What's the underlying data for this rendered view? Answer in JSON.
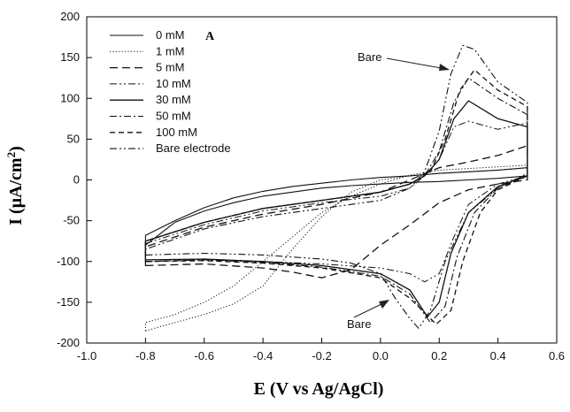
{
  "chart_data": {
    "type": "line",
    "panel_label": "A",
    "xlabel": "E (V vs Ag/AgCl)",
    "ylabel_main": "I (μA/cm",
    "ylabel_sup": "2",
    "ylabel_close": ")",
    "xlim": [
      -1.0,
      0.6
    ],
    "ylim": [
      -200,
      200
    ],
    "xticks": [
      -1.0,
      -0.8,
      -0.6,
      -0.4,
      -0.2,
      0.0,
      0.2,
      0.4,
      0.6
    ],
    "xtick_labels": [
      "-1.0",
      "-0.8",
      "-0.6",
      "-0.4",
      "-0.2",
      "0.0",
      "0.2",
      "0.4",
      "0.6"
    ],
    "yticks": [
      -200,
      -150,
      -100,
      -50,
      0,
      50,
      100,
      150,
      200
    ],
    "ytick_labels": [
      "-200",
      "-150",
      "-100",
      "-50",
      "0",
      "50",
      "100",
      "150",
      "200"
    ],
    "grid": false,
    "legend_position": "top-left",
    "annotations": [
      {
        "text": "Bare",
        "x": 0.28,
        "y": 165
      },
      {
        "text": "Bare",
        "x": 0.12,
        "y": -175
      }
    ],
    "series": [
      {
        "name": "0 mM",
        "dash": "solid",
        "weight": 1.1,
        "points": [
          [
            -0.8,
            -80
          ],
          [
            -0.7,
            -52
          ],
          [
            -0.6,
            -38
          ],
          [
            -0.5,
            -28
          ],
          [
            -0.4,
            -20
          ],
          [
            -0.3,
            -15
          ],
          [
            -0.2,
            -10
          ],
          [
            -0.1,
            -7
          ],
          [
            0.0,
            -5
          ],
          [
            0.1,
            -3
          ],
          [
            0.2,
            -2
          ],
          [
            0.3,
            0
          ],
          [
            0.4,
            2
          ],
          [
            0.5,
            5
          ],
          [
            0.5,
            15
          ],
          [
            0.4,
            12
          ],
          [
            0.3,
            10
          ],
          [
            0.2,
            8
          ],
          [
            0.1,
            5
          ],
          [
            0.0,
            3
          ],
          [
            -0.1,
            0
          ],
          [
            -0.2,
            -4
          ],
          [
            -0.3,
            -8
          ],
          [
            -0.4,
            -14
          ],
          [
            -0.5,
            -22
          ],
          [
            -0.6,
            -34
          ],
          [
            -0.7,
            -50
          ],
          [
            -0.8,
            -68
          ]
        ]
      },
      {
        "name": "1 mM",
        "dash": "dotted",
        "weight": 1.0,
        "points": [
          [
            -0.8,
            -185
          ],
          [
            -0.7,
            -175
          ],
          [
            -0.6,
            -165
          ],
          [
            -0.5,
            -152
          ],
          [
            -0.4,
            -130
          ],
          [
            -0.3,
            -85
          ],
          [
            -0.2,
            -45
          ],
          [
            -0.1,
            -15
          ],
          [
            0.0,
            0
          ],
          [
            0.1,
            5
          ],
          [
            0.2,
            8
          ],
          [
            0.3,
            10
          ],
          [
            0.4,
            12
          ],
          [
            0.5,
            15
          ],
          [
            0.5,
            18
          ],
          [
            0.4,
            16
          ],
          [
            0.3,
            14
          ],
          [
            0.2,
            12
          ],
          [
            0.1,
            6
          ],
          [
            0.0,
            -5
          ],
          [
            -0.1,
            -20
          ],
          [
            -0.2,
            -40
          ],
          [
            -0.3,
            -70
          ],
          [
            -0.4,
            -100
          ],
          [
            -0.5,
            -130
          ],
          [
            -0.6,
            -150
          ],
          [
            -0.7,
            -165
          ],
          [
            -0.8,
            -175
          ]
        ]
      },
      {
        "name": "5 mM",
        "dash": "longdash",
        "weight": 1.3,
        "points": [
          [
            -0.8,
            -105
          ],
          [
            -0.6,
            -103
          ],
          [
            -0.4,
            -108
          ],
          [
            -0.3,
            -113
          ],
          [
            -0.2,
            -120
          ],
          [
            -0.1,
            -110
          ],
          [
            0.0,
            -80
          ],
          [
            0.1,
            -55
          ],
          [
            0.2,
            -28
          ],
          [
            0.3,
            -12
          ],
          [
            0.4,
            -5
          ],
          [
            0.5,
            0
          ],
          [
            0.5,
            42
          ],
          [
            0.4,
            30
          ],
          [
            0.3,
            22
          ],
          [
            0.2,
            15
          ],
          [
            0.1,
            0
          ],
          [
            0.0,
            -15
          ],
          [
            -0.2,
            -30
          ],
          [
            -0.4,
            -42
          ],
          [
            -0.6,
            -58
          ],
          [
            -0.8,
            -82
          ]
        ]
      },
      {
        "name": "10 mM",
        "dash": "dashdotdot",
        "weight": 1.0,
        "points": [
          [
            -0.8,
            -100
          ],
          [
            -0.6,
            -98
          ],
          [
            -0.4,
            -100
          ],
          [
            -0.2,
            -103
          ],
          [
            0.0,
            -108
          ],
          [
            0.1,
            -115
          ],
          [
            0.15,
            -125
          ],
          [
            0.2,
            -115
          ],
          [
            0.25,
            -70
          ],
          [
            0.3,
            -30
          ],
          [
            0.4,
            -5
          ],
          [
            0.5,
            5
          ],
          [
            0.5,
            70
          ],
          [
            0.4,
            62
          ],
          [
            0.3,
            72
          ],
          [
            0.25,
            65
          ],
          [
            0.2,
            25
          ],
          [
            0.15,
            5
          ],
          [
            0.1,
            -10
          ],
          [
            0.0,
            -20
          ],
          [
            -0.2,
            -28
          ],
          [
            -0.4,
            -38
          ],
          [
            -0.6,
            -55
          ],
          [
            -0.8,
            -78
          ]
        ]
      },
      {
        "name": "30 mM",
        "dash": "solid",
        "weight": 1.3,
        "points": [
          [
            -0.8,
            -98
          ],
          [
            -0.6,
            -97
          ],
          [
            -0.4,
            -100
          ],
          [
            -0.2,
            -105
          ],
          [
            0.0,
            -115
          ],
          [
            0.1,
            -135
          ],
          [
            0.16,
            -168
          ],
          [
            0.2,
            -150
          ],
          [
            0.24,
            -90
          ],
          [
            0.3,
            -40
          ],
          [
            0.4,
            -8
          ],
          [
            0.5,
            5
          ],
          [
            0.5,
            65
          ],
          [
            0.4,
            75
          ],
          [
            0.3,
            97
          ],
          [
            0.25,
            75
          ],
          [
            0.2,
            25
          ],
          [
            0.15,
            5
          ],
          [
            0.1,
            -5
          ],
          [
            0.0,
            -15
          ],
          [
            -0.2,
            -25
          ],
          [
            -0.4,
            -35
          ],
          [
            -0.6,
            -52
          ],
          [
            -0.8,
            -75
          ]
        ]
      },
      {
        "name": "50 mM",
        "dash": "dashdot",
        "weight": 1.1,
        "points": [
          [
            -0.8,
            -100
          ],
          [
            -0.6,
            -98
          ],
          [
            -0.4,
            -101
          ],
          [
            -0.2,
            -107
          ],
          [
            0.0,
            -118
          ],
          [
            0.1,
            -140
          ],
          [
            0.17,
            -175
          ],
          [
            0.22,
            -155
          ],
          [
            0.26,
            -95
          ],
          [
            0.32,
            -40
          ],
          [
            0.4,
            -10
          ],
          [
            0.5,
            5
          ],
          [
            0.5,
            80
          ],
          [
            0.4,
            100
          ],
          [
            0.3,
            125
          ],
          [
            0.25,
            95
          ],
          [
            0.2,
            35
          ],
          [
            0.15,
            5
          ],
          [
            0.1,
            -5
          ],
          [
            0.0,
            -15
          ],
          [
            -0.2,
            -25
          ],
          [
            -0.4,
            -35
          ],
          [
            -0.6,
            -52
          ],
          [
            -0.8,
            -75
          ]
        ]
      },
      {
        "name": "100 mM",
        "dash": "dashed",
        "weight": 1.3,
        "points": [
          [
            -0.8,
            -100
          ],
          [
            -0.6,
            -99
          ],
          [
            -0.4,
            -102
          ],
          [
            -0.2,
            -108
          ],
          [
            0.0,
            -120
          ],
          [
            0.1,
            -145
          ],
          [
            0.19,
            -177
          ],
          [
            0.24,
            -160
          ],
          [
            0.28,
            -100
          ],
          [
            0.34,
            -40
          ],
          [
            0.4,
            -12
          ],
          [
            0.5,
            5
          ],
          [
            0.5,
            90
          ],
          [
            0.4,
            110
          ],
          [
            0.32,
            135
          ],
          [
            0.27,
            110
          ],
          [
            0.22,
            50
          ],
          [
            0.17,
            10
          ],
          [
            0.1,
            -5
          ],
          [
            0.0,
            -15
          ],
          [
            -0.2,
            -25
          ],
          [
            -0.4,
            -35
          ],
          [
            -0.6,
            -52
          ],
          [
            -0.8,
            -75
          ]
        ]
      },
      {
        "name": "Bare electrode",
        "dash": "dashdotdot",
        "weight": 1.1,
        "points": [
          [
            -0.8,
            -92
          ],
          [
            -0.6,
            -90
          ],
          [
            -0.4,
            -92
          ],
          [
            -0.2,
            -97
          ],
          [
            -0.1,
            -102
          ],
          [
            0.0,
            -115
          ],
          [
            0.05,
            -145
          ],
          [
            0.1,
            -170
          ],
          [
            0.13,
            -182
          ],
          [
            0.17,
            -160
          ],
          [
            0.22,
            -100
          ],
          [
            0.3,
            -40
          ],
          [
            0.4,
            -10
          ],
          [
            0.5,
            8
          ],
          [
            0.5,
            95
          ],
          [
            0.4,
            120
          ],
          [
            0.32,
            160
          ],
          [
            0.28,
            165
          ],
          [
            0.24,
            130
          ],
          [
            0.2,
            60
          ],
          [
            0.15,
            10
          ],
          [
            0.1,
            -10
          ],
          [
            0.0,
            -25
          ],
          [
            -0.2,
            -35
          ],
          [
            -0.4,
            -45
          ],
          [
            -0.6,
            -60
          ],
          [
            -0.8,
            -85
          ]
        ]
      }
    ]
  }
}
